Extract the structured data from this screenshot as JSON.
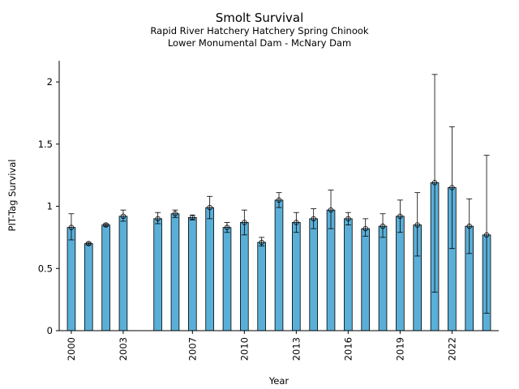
{
  "chart_data": {
    "type": "bar",
    "title": "Smolt Survival",
    "subtitle_lines": [
      "Rapid River Hatchery Hatchery Spring Chinook",
      "Lower Monumental Dam - McNary Dam"
    ],
    "xlabel": "Year",
    "ylabel": "PIT-Tag Survival",
    "ylim": [
      0,
      2.17
    ],
    "yticks": [
      0,
      0.5,
      1,
      1.5,
      2
    ],
    "ytick_labels": [
      "0",
      "0.5",
      "1",
      "1.5",
      "2"
    ],
    "xlim": [
      1999.3,
      2024.7
    ],
    "xticks": [
      2000,
      2003,
      2007,
      2010,
      2013,
      2016,
      2019,
      2022
    ],
    "xtick_labels": [
      "2000",
      "2003",
      "2007",
      "2010",
      "2013",
      "2016",
      "2019",
      "2022"
    ],
    "bar_color": "#5aafd8",
    "grid": false,
    "series": [
      {
        "points": [
          {
            "year": 2000,
            "value": 0.83,
            "lo": 0.73,
            "hi": 0.94
          },
          {
            "year": 2001,
            "value": 0.7,
            "lo": 0.69,
            "hi": 0.71
          },
          {
            "year": 2002,
            "value": 0.85,
            "lo": 0.84,
            "hi": 0.86
          },
          {
            "year": 2003,
            "value": 0.92,
            "lo": 0.88,
            "hi": 0.97
          },
          {
            "year": 2005,
            "value": 0.9,
            "lo": 0.86,
            "hi": 0.95
          },
          {
            "year": 2006,
            "value": 0.94,
            "lo": 0.91,
            "hi": 0.97
          },
          {
            "year": 2007,
            "value": 0.91,
            "lo": 0.89,
            "hi": 0.93
          },
          {
            "year": 2008,
            "value": 0.99,
            "lo": 0.9,
            "hi": 1.08
          },
          {
            "year": 2009,
            "value": 0.83,
            "lo": 0.79,
            "hi": 0.87
          },
          {
            "year": 2010,
            "value": 0.87,
            "lo": 0.77,
            "hi": 0.97
          },
          {
            "year": 2011,
            "value": 0.71,
            "lo": 0.68,
            "hi": 0.75
          },
          {
            "year": 2012,
            "value": 1.05,
            "lo": 0.99,
            "hi": 1.11
          },
          {
            "year": 2013,
            "value": 0.87,
            "lo": 0.79,
            "hi": 0.95
          },
          {
            "year": 2014,
            "value": 0.9,
            "lo": 0.82,
            "hi": 0.98
          },
          {
            "year": 2015,
            "value": 0.97,
            "lo": 0.82,
            "hi": 1.13
          },
          {
            "year": 2016,
            "value": 0.9,
            "lo": 0.85,
            "hi": 0.95
          },
          {
            "year": 2017,
            "value": 0.82,
            "lo": 0.76,
            "hi": 0.9
          },
          {
            "year": 2018,
            "value": 0.84,
            "lo": 0.75,
            "hi": 0.94
          },
          {
            "year": 2019,
            "value": 0.92,
            "lo": 0.79,
            "hi": 1.05
          },
          {
            "year": 2020,
            "value": 0.85,
            "lo": 0.6,
            "hi": 1.11
          },
          {
            "year": 2021,
            "value": 1.19,
            "lo": 0.31,
            "hi": 2.06
          },
          {
            "year": 2022,
            "value": 1.15,
            "lo": 0.66,
            "hi": 1.64
          },
          {
            "year": 2023,
            "value": 0.84,
            "lo": 0.62,
            "hi": 1.06
          },
          {
            "year": 2024,
            "value": 0.77,
            "lo": 0.14,
            "hi": 1.41
          }
        ]
      }
    ]
  }
}
